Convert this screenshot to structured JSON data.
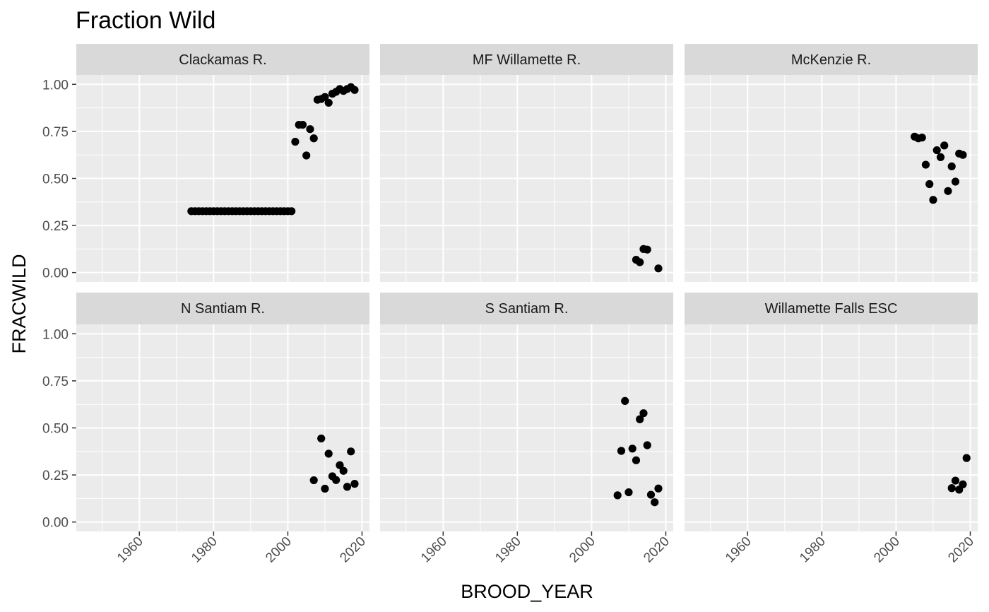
{
  "chart_data": {
    "type": "scatter",
    "title": "Fraction Wild",
    "xlabel": "BROOD_YEAR",
    "ylabel": "FRACWILD",
    "xlim": [
      1943,
      2022
    ],
    "ylim": [
      -0.05,
      1.05
    ],
    "x_ticks": [
      1960,
      1980,
      2000,
      2020
    ],
    "x_tick_labels": [
      "1960",
      "1980",
      "2000",
      "2020"
    ],
    "y_ticks": [
      0.0,
      0.25,
      0.5,
      0.75,
      1.0
    ],
    "y_tick_labels": [
      "0.00",
      "0.25",
      "0.50",
      "0.75",
      "1.00"
    ],
    "grid": true,
    "layout": "facet-wrap 2 rows x 3 columns",
    "colors": {
      "panel_background": "#ebebeb",
      "strip_background": "#d9d9d9",
      "grid": "#ffffff",
      "point": "#000000",
      "tick_label": "#4d4d4d"
    },
    "panels": [
      {
        "label": "Clackamas R.",
        "points": [
          [
            1974,
            0.326
          ],
          [
            1975,
            0.326
          ],
          [
            1976,
            0.326
          ],
          [
            1977,
            0.326
          ],
          [
            1978,
            0.326
          ],
          [
            1979,
            0.326
          ],
          [
            1980,
            0.326
          ],
          [
            1981,
            0.326
          ],
          [
            1982,
            0.326
          ],
          [
            1983,
            0.326
          ],
          [
            1984,
            0.326
          ],
          [
            1985,
            0.326
          ],
          [
            1986,
            0.326
          ],
          [
            1987,
            0.326
          ],
          [
            1988,
            0.326
          ],
          [
            1989,
            0.326
          ],
          [
            1990,
            0.326
          ],
          [
            1991,
            0.326
          ],
          [
            1992,
            0.326
          ],
          [
            1993,
            0.326
          ],
          [
            1994,
            0.326
          ],
          [
            1995,
            0.326
          ],
          [
            1996,
            0.326
          ],
          [
            1997,
            0.326
          ],
          [
            1998,
            0.326
          ],
          [
            1999,
            0.326
          ],
          [
            2000,
            0.326
          ],
          [
            2001,
            0.326
          ],
          [
            2002,
            0.695
          ],
          [
            2003,
            0.785
          ],
          [
            2004,
            0.785
          ],
          [
            2005,
            0.622
          ],
          [
            2006,
            0.762
          ],
          [
            2007,
            0.713
          ],
          [
            2008,
            0.918
          ],
          [
            2009,
            0.922
          ],
          [
            2010,
            0.933
          ],
          [
            2011,
            0.902
          ],
          [
            2012,
            0.95
          ],
          [
            2013,
            0.96
          ],
          [
            2014,
            0.975
          ],
          [
            2015,
            0.965
          ],
          [
            2016,
            0.975
          ],
          [
            2017,
            0.985
          ],
          [
            2018,
            0.97
          ]
        ]
      },
      {
        "label": "MF Willamette R.",
        "points": [
          [
            2012,
            0.068
          ],
          [
            2013,
            0.055
          ],
          [
            2014,
            0.125
          ],
          [
            2015,
            0.122
          ],
          [
            2018,
            0.022
          ]
        ]
      },
      {
        "label": "McKenzie R.",
        "points": [
          [
            2005,
            0.722
          ],
          [
            2006,
            0.713
          ],
          [
            2007,
            0.717
          ],
          [
            2008,
            0.573
          ],
          [
            2009,
            0.47
          ],
          [
            2010,
            0.386
          ],
          [
            2011,
            0.65
          ],
          [
            2012,
            0.613
          ],
          [
            2013,
            0.675
          ],
          [
            2014,
            0.433
          ],
          [
            2015,
            0.564
          ],
          [
            2016,
            0.483
          ],
          [
            2017,
            0.632
          ],
          [
            2018,
            0.625
          ]
        ]
      },
      {
        "label": "N Santiam R.",
        "points": [
          [
            2007,
            0.222
          ],
          [
            2009,
            0.444
          ],
          [
            2010,
            0.177
          ],
          [
            2011,
            0.363
          ],
          [
            2012,
            0.243
          ],
          [
            2013,
            0.223
          ],
          [
            2014,
            0.302
          ],
          [
            2015,
            0.272
          ],
          [
            2016,
            0.187
          ],
          [
            2017,
            0.375
          ],
          [
            2018,
            0.203
          ]
        ]
      },
      {
        "label": "S Santiam R.",
        "points": [
          [
            2007,
            0.142
          ],
          [
            2008,
            0.378
          ],
          [
            2009,
            0.643
          ],
          [
            2010,
            0.158
          ],
          [
            2011,
            0.39
          ],
          [
            2012,
            0.328
          ],
          [
            2013,
            0.546
          ],
          [
            2014,
            0.578
          ],
          [
            2015,
            0.408
          ],
          [
            2016,
            0.145
          ],
          [
            2017,
            0.105
          ],
          [
            2018,
            0.178
          ]
        ]
      },
      {
        "label": "Willamette Falls ESC",
        "points": [
          [
            2015,
            0.18
          ],
          [
            2016,
            0.22
          ],
          [
            2017,
            0.172
          ],
          [
            2018,
            0.2
          ],
          [
            2019,
            0.34
          ]
        ]
      }
    ]
  }
}
